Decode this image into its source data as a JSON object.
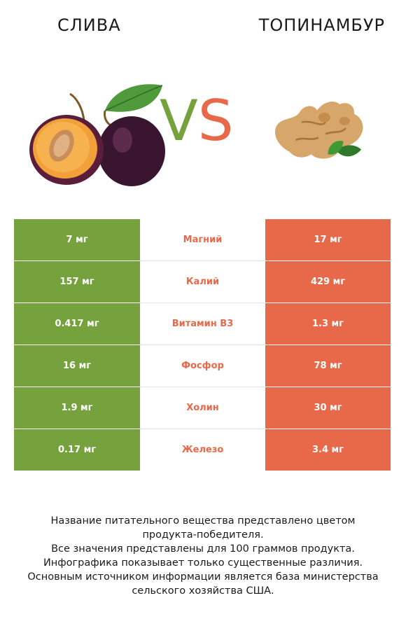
{
  "header": {
    "left_title": "СЛИВА",
    "right_title": "ТОПИНАМБУР",
    "vs_v": "V",
    "vs_s": "S"
  },
  "colors": {
    "winner_left": "#75a23d",
    "winner_right": "#e8694a"
  },
  "rows": [
    {
      "left": "7 мг",
      "nutrient": "Магний",
      "right": "17 мг"
    },
    {
      "left": "157 мг",
      "nutrient": "Калий",
      "right": "429 мг"
    },
    {
      "left": "0.417 мг",
      "nutrient": "Витамин B3",
      "right": "1.3 мг"
    },
    {
      "left": "16 мг",
      "nutrient": "Фосфор",
      "right": "78 мг"
    },
    {
      "left": "1.9 мг",
      "nutrient": "Холин",
      "right": "30 мг"
    },
    {
      "left": "0.17 мг",
      "nutrient": "Железо",
      "right": "3.4 мг"
    }
  ],
  "notes": [
    "Название питательного вещества представлено цветом",
    "продукта-победителя.",
    "Все значения представлены для 100 граммов продукта.",
    "Инфографика показывает только существенные различия.",
    "Основным источником информации является база министерства",
    "сельского хозяйства США."
  ]
}
